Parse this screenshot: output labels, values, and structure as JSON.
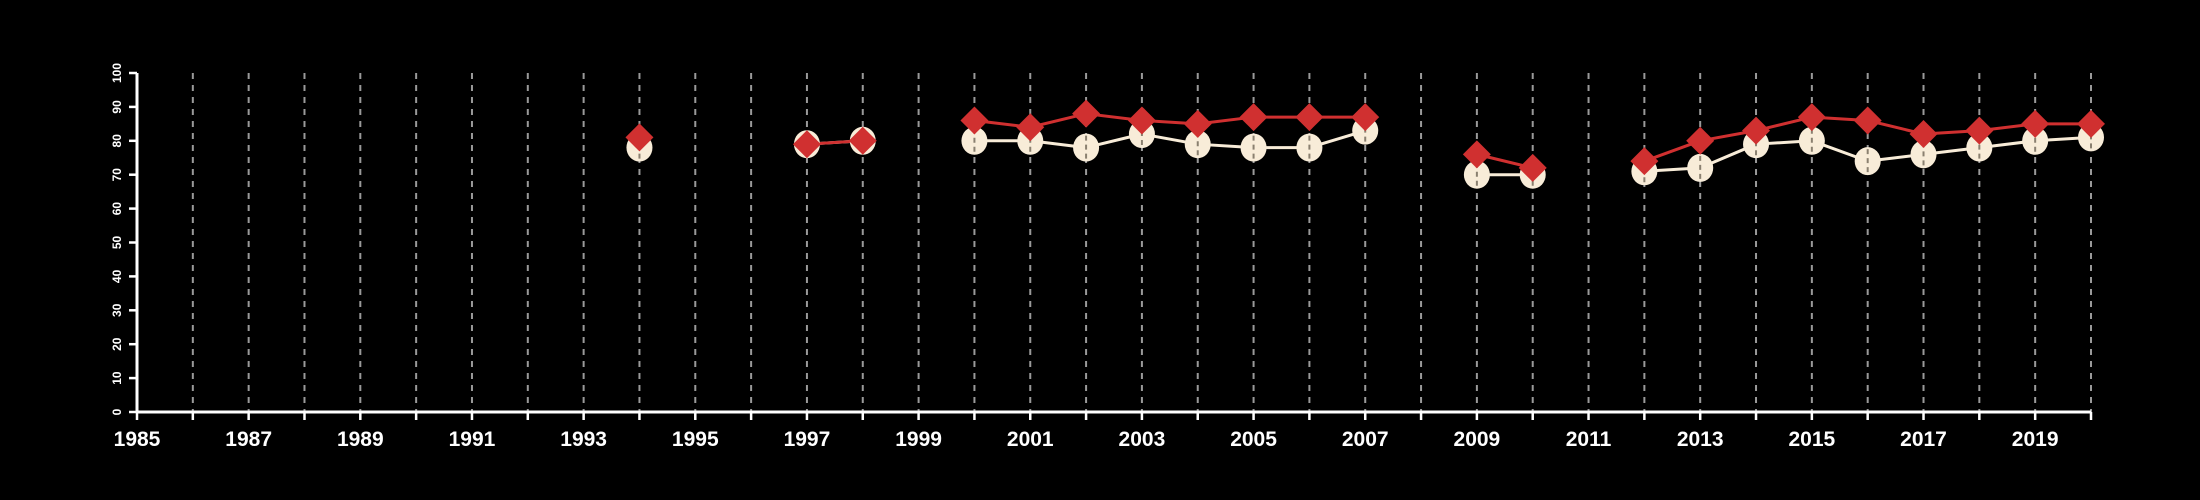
{
  "chart_data": {
    "type": "line",
    "title": "",
    "xlabel": "",
    "ylabel": "",
    "xlim": [
      1985,
      2020
    ],
    "ylim": [
      0,
      100
    ],
    "x_ticks": [
      1985,
      1986,
      1987,
      1988,
      1989,
      1990,
      1991,
      1992,
      1993,
      1994,
      1995,
      1996,
      1997,
      1998,
      1999,
      2000,
      2001,
      2002,
      2003,
      2004,
      2005,
      2006,
      2007,
      2008,
      2009,
      2010,
      2011,
      2012,
      2013,
      2014,
      2015,
      2016,
      2017,
      2018,
      2019,
      2020
    ],
    "x_tick_labels": [
      "1985",
      "1987",
      "1989",
      "1991",
      "1993",
      "1995",
      "1997",
      "1999",
      "2001",
      "2003",
      "2005",
      "2007",
      "2009",
      "2011",
      "2013",
      "2015",
      "2017",
      "2019"
    ],
    "y_ticks": [
      0,
      10,
      20,
      30,
      40,
      50,
      60,
      70,
      80,
      90,
      100
    ],
    "y_tick_labels": [
      "0",
      "10",
      "20",
      "30",
      "40",
      "50",
      "60",
      "70",
      "80",
      "90",
      "100"
    ],
    "grid": "vertical dashed lines at each year",
    "legend": "none",
    "x": [
      1994,
      1997,
      1998,
      2000,
      2001,
      2002,
      2003,
      2004,
      2005,
      2006,
      2007,
      2009,
      2010,
      2012,
      2013,
      2014,
      2015,
      2016,
      2017,
      2018,
      2019,
      2020
    ],
    "series": [
      {
        "name": "series-red-diamond",
        "color": "#d03030",
        "marker": "diamond",
        "values": [
          81,
          79,
          80,
          86,
          84,
          88,
          86,
          85,
          87,
          87,
          87,
          76,
          72,
          74,
          80,
          83,
          87,
          86,
          82,
          83,
          85,
          85
        ]
      },
      {
        "name": "series-cream-circle",
        "color": "#f8ecd8",
        "marker": "circle",
        "values": [
          78,
          79,
          80,
          80,
          80,
          78,
          82,
          79,
          78,
          78,
          83,
          70,
          70,
          71,
          72,
          79,
          80,
          74,
          76,
          78,
          80,
          81
        ]
      }
    ]
  }
}
